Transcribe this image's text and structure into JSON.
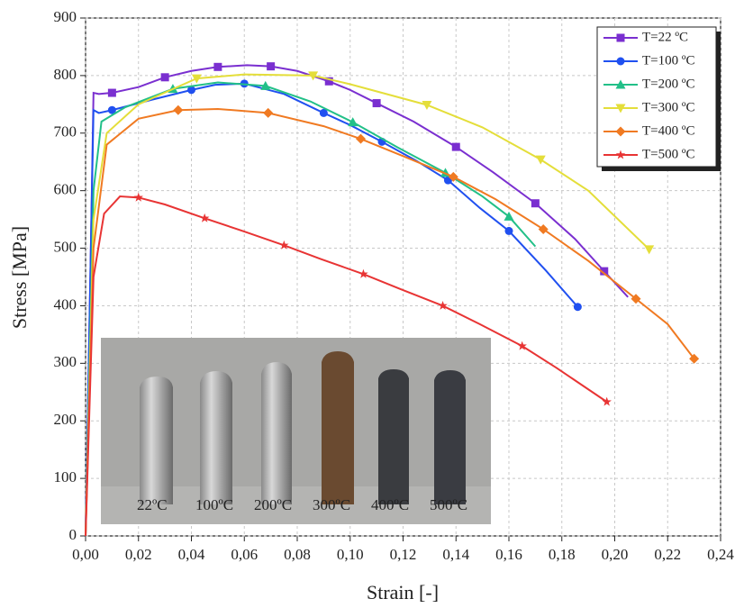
{
  "chart_data": {
    "type": "line",
    "xlabel": "Strain [-]",
    "ylabel": "Stress [MPa]",
    "xlim": [
      0,
      0.24
    ],
    "ylim": [
      0,
      900
    ],
    "xticks": [
      {
        "value": 0,
        "label": "0,00"
      },
      {
        "value": 0.02,
        "label": "0,02"
      },
      {
        "value": 0.04,
        "label": "0,04"
      },
      {
        "value": 0.06,
        "label": "0,06"
      },
      {
        "value": 0.08,
        "label": "0,08"
      },
      {
        "value": 0.1,
        "label": "0,10"
      },
      {
        "value": 0.12,
        "label": "0,12"
      },
      {
        "value": 0.14,
        "label": "0,14"
      },
      {
        "value": 0.16,
        "label": "0,16"
      },
      {
        "value": 0.18,
        "label": "0,18"
      },
      {
        "value": 0.2,
        "label": "0,20"
      },
      {
        "value": 0.22,
        "label": "0,22"
      },
      {
        "value": 0.24,
        "label": "0,24"
      }
    ],
    "yticks": [
      0,
      100,
      200,
      300,
      400,
      500,
      600,
      700,
      800,
      900
    ],
    "grid": true,
    "legend": "upper right",
    "series": [
      {
        "name": "T=22 ºC",
        "color": "#7a2fd0",
        "marker": "square",
        "x": [
          0,
          0.002,
          0.003,
          0.005,
          0.01,
          0.02,
          0.03,
          0.04,
          0.05,
          0.061,
          0.07,
          0.08,
          0.092,
          0.1,
          0.11,
          0.124,
          0.14,
          0.154,
          0.17,
          0.185,
          0.196,
          0.205
        ],
        "values": [
          0,
          500,
          770,
          768,
          770,
          780,
          797,
          808,
          815,
          818,
          816,
          808,
          790,
          775,
          752,
          720,
          676,
          632,
          578,
          516,
          460,
          415
        ]
      },
      {
        "name": "T=100 ºC",
        "color": "#2050f0",
        "marker": "circle",
        "x": [
          0,
          0.002,
          0.003,
          0.005,
          0.01,
          0.025,
          0.04,
          0.049,
          0.06,
          0.075,
          0.09,
          0.1,
          0.112,
          0.125,
          0.137,
          0.149,
          0.16,
          0.174,
          0.186
        ],
        "values": [
          0,
          500,
          740,
          735,
          740,
          758,
          775,
          784,
          786,
          768,
          735,
          714,
          685,
          652,
          618,
          570,
          530,
          461,
          398
        ]
      },
      {
        "name": "T=200 ºC",
        "color": "#22c088",
        "marker": "triangle",
        "x": [
          0,
          0.003,
          0.006,
          0.015,
          0.033,
          0.05,
          0.068,
          0.085,
          0.101,
          0.118,
          0.136,
          0.15,
          0.16,
          0.17
        ],
        "values": [
          0,
          600,
          720,
          745,
          777,
          788,
          782,
          755,
          719,
          675,
          631,
          590,
          555,
          503
        ]
      },
      {
        "name": "T=300 ºC",
        "color": "#e4de3a",
        "marker": "triangle-down",
        "x": [
          0,
          0.003,
          0.008,
          0.02,
          0.042,
          0.06,
          0.086,
          0.1,
          0.129,
          0.15,
          0.172,
          0.19,
          0.213
        ],
        "values": [
          0,
          550,
          700,
          750,
          795,
          802,
          800,
          785,
          749,
          710,
          654,
          600,
          498
        ]
      },
      {
        "name": "T=400 ºC",
        "color": "#f07a22",
        "marker": "diamond",
        "x": [
          0,
          0.003,
          0.008,
          0.02,
          0.035,
          0.05,
          0.069,
          0.09,
          0.104,
          0.12,
          0.139,
          0.155,
          0.173,
          0.19,
          0.208,
          0.22,
          0.23
        ],
        "values": [
          0,
          500,
          680,
          725,
          740,
          742,
          735,
          712,
          690,
          660,
          624,
          585,
          533,
          478,
          412,
          368,
          308
        ]
      },
      {
        "name": "T=500 ºC",
        "color": "#e83434",
        "marker": "star",
        "x": [
          0,
          0.003,
          0.007,
          0.013,
          0.02,
          0.03,
          0.045,
          0.06,
          0.075,
          0.089,
          0.105,
          0.119,
          0.135,
          0.149,
          0.165,
          0.178,
          0.197
        ],
        "values": [
          0,
          450,
          560,
          590,
          588,
          576,
          552,
          529,
          505,
          481,
          455,
          429,
          400,
          368,
          330,
          292,
          233
        ]
      }
    ],
    "inset_labels": [
      "22ºC",
      "100ºC",
      "200ºC",
      "300ºC",
      "400ºC",
      "500ºC"
    ]
  }
}
